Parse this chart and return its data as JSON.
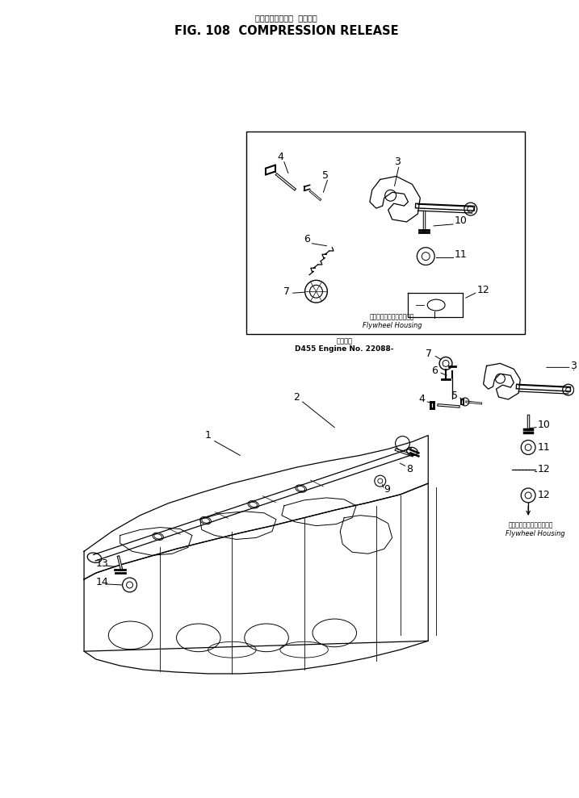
{
  "title_japanese": "コンプレッション  リリーズ",
  "title_main": "FIG. 108  COMPRESSION RELEASE",
  "bg_color": "#ffffff",
  "engine_note_jp": "適用番号",
  "engine_note": "D455 Engine No. 22088-",
  "flywheel_label_jp": "フライホイールハウジング",
  "flywheel_label": "Flywheel Housing"
}
